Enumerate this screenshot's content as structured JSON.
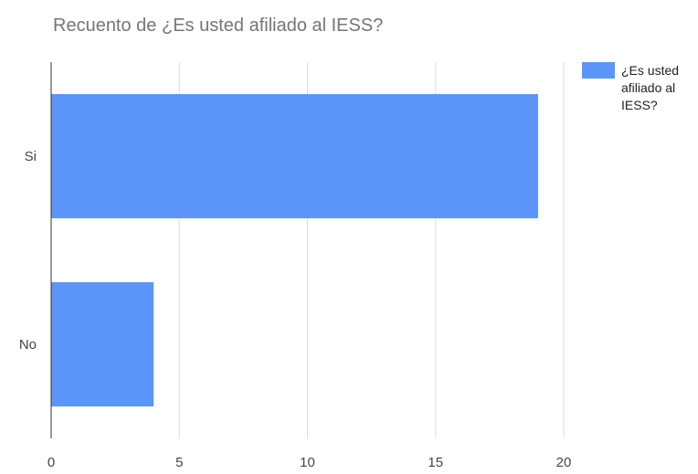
{
  "chart_data": {
    "type": "bar",
    "orientation": "horizontal",
    "title": "Recuento de ¿Es usted afiliado al IESS?",
    "xlabel": "",
    "ylabel": "",
    "categories": [
      "Si",
      "No"
    ],
    "series": [
      {
        "name": "¿Es usted afiliado al IESS?",
        "values": [
          19,
          4
        ],
        "color": "#5b95f9"
      }
    ],
    "xlim": [
      0,
      20
    ],
    "xticks": [
      0,
      5,
      10,
      15,
      20
    ],
    "grid": true,
    "legend_position": "top-right",
    "legend_lines": [
      "¿Es usted",
      "afiliado al",
      "IESS?"
    ]
  }
}
